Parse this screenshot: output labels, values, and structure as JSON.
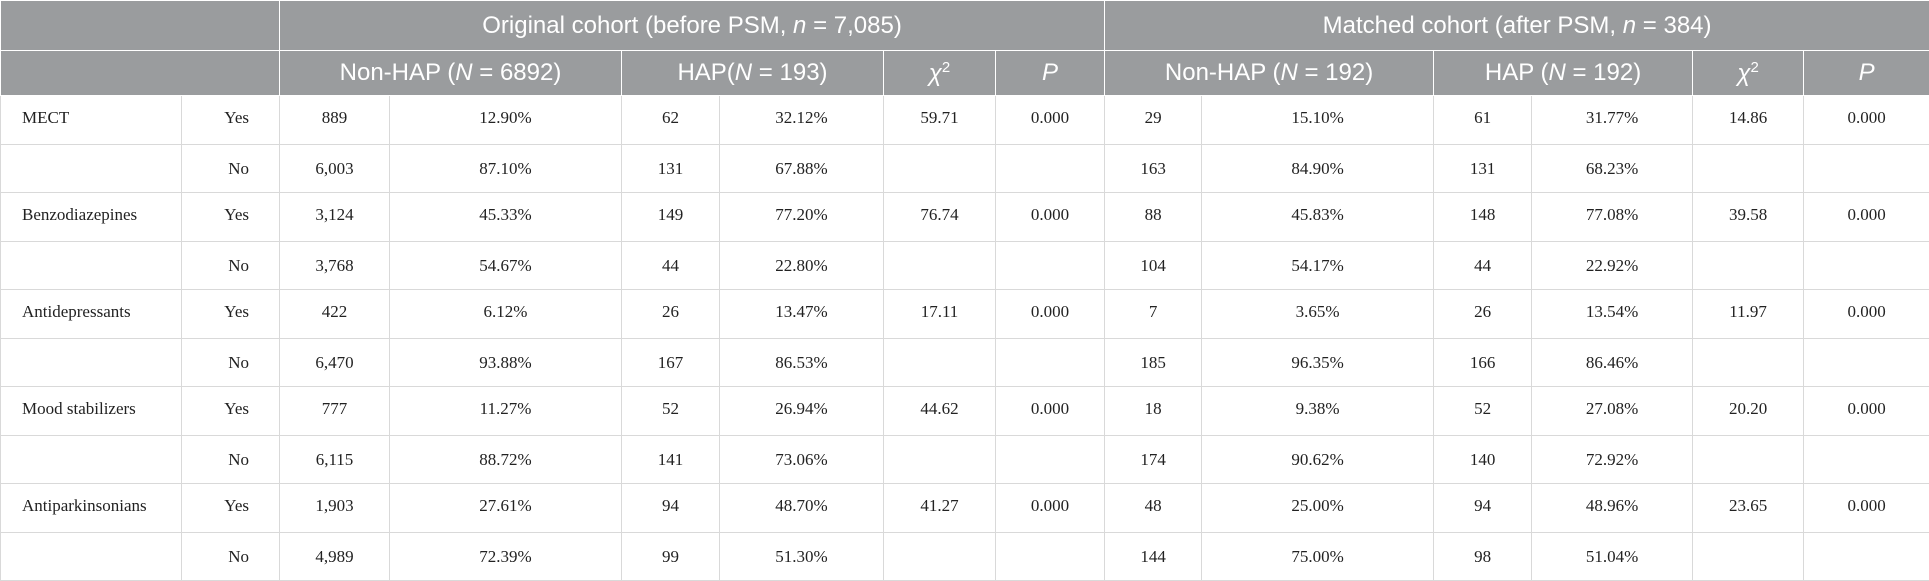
{
  "header": {
    "group1": {
      "prefix": "Original cohort (before PSM, ",
      "n_sym": "n",
      "suffix": " = 7,085)"
    },
    "group2": {
      "prefix": "Matched cohort (after PSM, ",
      "n_sym": "n",
      "suffix": " = 384)"
    },
    "sub": {
      "nonhap1": {
        "prefix": "Non-HAP (",
        "N": "N",
        "suffix": " = 6892)"
      },
      "hap1": {
        "prefix": "HAP(",
        "N": "N",
        "suffix": " = 193)"
      },
      "chi": "χ",
      "chi_sup": "2",
      "p": "P",
      "nonhap2": {
        "prefix": "Non-HAP (",
        "N": "N",
        "suffix": " = 192)"
      },
      "hap2": {
        "prefix": "HAP (",
        "N": "N",
        "suffix": " = 192)"
      }
    }
  },
  "rows": [
    {
      "variable": "MECT",
      "level": "Yes",
      "o_nonhap_n": "889",
      "o_nonhap_pct": "12.90%",
      "o_hap_n": "62",
      "o_hap_pct": "32.12%",
      "o_chi": "59.71",
      "o_p": "0.000",
      "m_nonhap_n": "29",
      "m_nonhap_pct": "15.10%",
      "m_hap_n": "61",
      "m_hap_pct": "31.77%",
      "m_chi": "14.86",
      "m_p": "0.000"
    },
    {
      "variable": "",
      "level": "No",
      "o_nonhap_n": "6,003",
      "o_nonhap_pct": "87.10%",
      "o_hap_n": "131",
      "o_hap_pct": "67.88%",
      "o_chi": "",
      "o_p": "",
      "m_nonhap_n": "163",
      "m_nonhap_pct": "84.90%",
      "m_hap_n": "131",
      "m_hap_pct": "68.23%",
      "m_chi": "",
      "m_p": ""
    },
    {
      "variable": "Benzodiazepines",
      "level": "Yes",
      "o_nonhap_n": "3,124",
      "o_nonhap_pct": "45.33%",
      "o_hap_n": "149",
      "o_hap_pct": "77.20%",
      "o_chi": "76.74",
      "o_p": "0.000",
      "m_nonhap_n": "88",
      "m_nonhap_pct": "45.83%",
      "m_hap_n": "148",
      "m_hap_pct": "77.08%",
      "m_chi": "39.58",
      "m_p": "0.000"
    },
    {
      "variable": "",
      "level": "No",
      "o_nonhap_n": "3,768",
      "o_nonhap_pct": "54.67%",
      "o_hap_n": "44",
      "o_hap_pct": "22.80%",
      "o_chi": "",
      "o_p": "",
      "m_nonhap_n": "104",
      "m_nonhap_pct": "54.17%",
      "m_hap_n": "44",
      "m_hap_pct": "22.92%",
      "m_chi": "",
      "m_p": ""
    },
    {
      "variable": "Antidepressants",
      "level": "Yes",
      "o_nonhap_n": "422",
      "o_nonhap_pct": "6.12%",
      "o_hap_n": "26",
      "o_hap_pct": "13.47%",
      "o_chi": "17.11",
      "o_p": "0.000",
      "m_nonhap_n": "7",
      "m_nonhap_pct": "3.65%",
      "m_hap_n": "26",
      "m_hap_pct": "13.54%",
      "m_chi": "11.97",
      "m_p": "0.000"
    },
    {
      "variable": "",
      "level": "No",
      "o_nonhap_n": "6,470",
      "o_nonhap_pct": "93.88%",
      "o_hap_n": "167",
      "o_hap_pct": "86.53%",
      "o_chi": "",
      "o_p": "",
      "m_nonhap_n": "185",
      "m_nonhap_pct": "96.35%",
      "m_hap_n": "166",
      "m_hap_pct": "86.46%",
      "m_chi": "",
      "m_p": ""
    },
    {
      "variable": "Mood stabilizers",
      "level": "Yes",
      "o_nonhap_n": "777",
      "o_nonhap_pct": "11.27%",
      "o_hap_n": "52",
      "o_hap_pct": "26.94%",
      "o_chi": "44.62",
      "o_p": "0.000",
      "m_nonhap_n": "18",
      "m_nonhap_pct": "9.38%",
      "m_hap_n": "52",
      "m_hap_pct": "27.08%",
      "m_chi": "20.20",
      "m_p": "0.000"
    },
    {
      "variable": "",
      "level": "No",
      "o_nonhap_n": "6,115",
      "o_nonhap_pct": "88.72%",
      "o_hap_n": "141",
      "o_hap_pct": "73.06%",
      "o_chi": "",
      "o_p": "",
      "m_nonhap_n": "174",
      "m_nonhap_pct": "90.62%",
      "m_hap_n": "140",
      "m_hap_pct": "72.92%",
      "m_chi": "",
      "m_p": ""
    },
    {
      "variable": "Antiparkinsonians",
      "level": "Yes",
      "o_nonhap_n": "1,903",
      "o_nonhap_pct": "27.61%",
      "o_hap_n": "94",
      "o_hap_pct": "48.70%",
      "o_chi": "41.27",
      "o_p": "0.000",
      "m_nonhap_n": "48",
      "m_nonhap_pct": "25.00%",
      "m_hap_n": "94",
      "m_hap_pct": "48.96%",
      "m_chi": "23.65",
      "m_p": "0.000"
    },
    {
      "variable": "",
      "level": "No",
      "o_nonhap_n": "4,989",
      "o_nonhap_pct": "72.39%",
      "o_hap_n": "99",
      "o_hap_pct": "51.30%",
      "o_chi": "",
      "o_p": "",
      "m_nonhap_n": "144",
      "m_nonhap_pct": "75.00%",
      "m_hap_n": "98",
      "m_hap_pct": "51.04%",
      "m_chi": "",
      "m_p": ""
    }
  ]
}
